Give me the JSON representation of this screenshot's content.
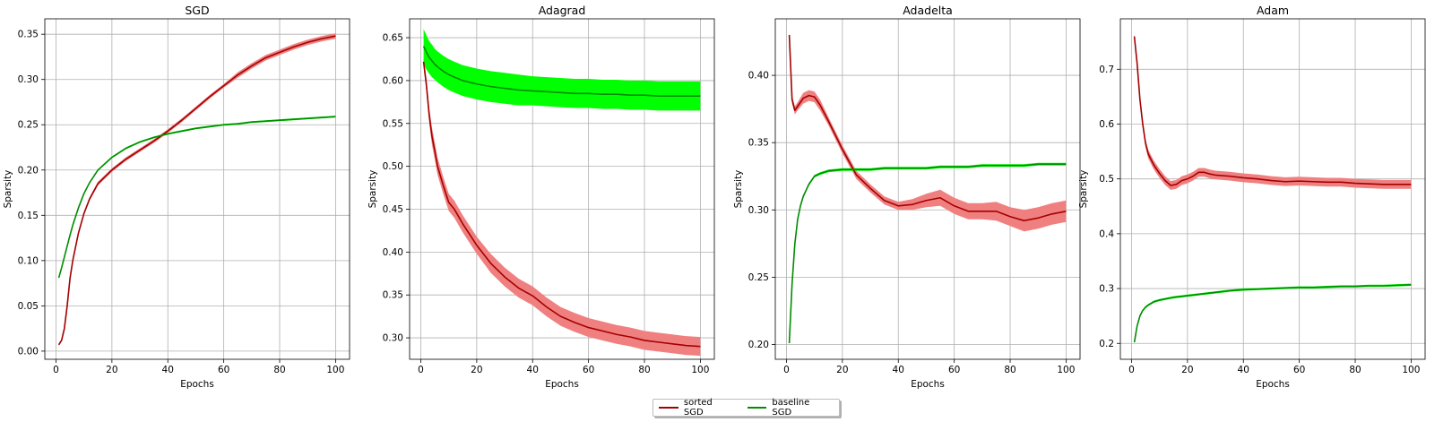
{
  "colors": {
    "sorted": "#a30000",
    "sorted_band": "#f08080",
    "baseline": "#008c00",
    "baseline_band": "#00ff00",
    "grid": "#b0b0b0"
  },
  "legend": {
    "items": [
      "sorted SGD",
      "baseline SGD"
    ],
    "placement": "bottom-center"
  },
  "chart_data": [
    {
      "type": "line",
      "title": "SGD",
      "xlabel": "Epochs",
      "ylabel": "Sparsity",
      "xlim": [
        -4,
        105
      ],
      "ylim": [
        -0.009,
        0.367
      ],
      "xticks": [
        0,
        20,
        40,
        60,
        80,
        100
      ],
      "yticks": [
        0.0,
        0.05,
        0.1,
        0.15,
        0.2,
        0.25,
        0.3,
        0.35
      ],
      "ytick_labels": [
        "0.00",
        "0.05",
        "0.10",
        "0.15",
        "0.20",
        "0.25",
        "0.30",
        "0.35"
      ],
      "grid": true,
      "series": [
        {
          "name": "sorted SGD",
          "x": [
            1,
            2,
            3,
            4,
            5,
            6,
            8,
            10,
            12,
            15,
            20,
            25,
            30,
            35,
            40,
            45,
            50,
            55,
            60,
            65,
            70,
            75,
            80,
            85,
            90,
            95,
            100
          ],
          "y": [
            0.007,
            0.012,
            0.025,
            0.05,
            0.08,
            0.1,
            0.13,
            0.152,
            0.168,
            0.185,
            0.2,
            0.212,
            0.222,
            0.232,
            0.243,
            0.255,
            0.268,
            0.281,
            0.293,
            0.305,
            0.315,
            0.324,
            0.33,
            0.336,
            0.341,
            0.345,
            0.348
          ],
          "band": [
            0.001,
            0.001,
            0.002,
            0.002,
            0.002,
            0.002,
            0.002,
            0.002,
            0.002,
            0.002,
            0.002,
            0.002,
            0.002,
            0.002,
            0.002,
            0.002,
            0.002,
            0.002,
            0.002,
            0.003,
            0.003,
            0.003,
            0.003,
            0.003,
            0.003,
            0.003,
            0.003
          ]
        },
        {
          "name": "baseline SGD",
          "x": [
            1,
            2,
            3,
            4,
            5,
            6,
            8,
            10,
            12,
            15,
            20,
            25,
            30,
            35,
            40,
            45,
            50,
            55,
            60,
            65,
            70,
            75,
            80,
            85,
            90,
            95,
            100
          ],
          "y": [
            0.081,
            0.092,
            0.104,
            0.116,
            0.128,
            0.139,
            0.158,
            0.174,
            0.186,
            0.2,
            0.214,
            0.224,
            0.231,
            0.236,
            0.24,
            0.243,
            0.246,
            0.248,
            0.25,
            0.251,
            0.253,
            0.254,
            0.255,
            0.256,
            0.257,
            0.258,
            0.259
          ],
          "band": [
            0.001,
            0.001,
            0.001,
            0.001,
            0.001,
            0.001,
            0.001,
            0.001,
            0.001,
            0.001,
            0.001,
            0.001,
            0.001,
            0.001,
            0.001,
            0.001,
            0.001,
            0.001,
            0.001,
            0.001,
            0.001,
            0.001,
            0.001,
            0.001,
            0.001,
            0.001,
            0.001
          ]
        }
      ]
    },
    {
      "type": "line",
      "title": "Adagrad",
      "xlabel": "Epochs",
      "ylabel": "Sparsity",
      "xlim": [
        -4,
        105
      ],
      "ylim": [
        0.275,
        0.672
      ],
      "xticks": [
        0,
        20,
        40,
        60,
        80,
        100
      ],
      "yticks": [
        0.3,
        0.35,
        0.4,
        0.45,
        0.5,
        0.55,
        0.6,
        0.65
      ],
      "ytick_labels": [
        "0.30",
        "0.35",
        "0.40",
        "0.45",
        "0.50",
        "0.55",
        "0.60",
        "0.65"
      ],
      "grid": true,
      "series": [
        {
          "name": "sorted SGD",
          "x": [
            1,
            2,
            3,
            4,
            5,
            6,
            8,
            10,
            12,
            15,
            20,
            25,
            30,
            35,
            40,
            45,
            50,
            55,
            60,
            65,
            70,
            75,
            80,
            85,
            90,
            95,
            100
          ],
          "y": [
            0.622,
            0.595,
            0.56,
            0.535,
            0.518,
            0.5,
            0.478,
            0.458,
            0.45,
            0.433,
            0.408,
            0.387,
            0.371,
            0.358,
            0.349,
            0.336,
            0.325,
            0.318,
            0.312,
            0.308,
            0.304,
            0.301,
            0.297,
            0.295,
            0.293,
            0.291,
            0.29
          ],
          "band": [
            0.006,
            0.008,
            0.009,
            0.01,
            0.01,
            0.01,
            0.01,
            0.01,
            0.01,
            0.01,
            0.01,
            0.011,
            0.011,
            0.011,
            0.011,
            0.011,
            0.011,
            0.011,
            0.011,
            0.011,
            0.011,
            0.011,
            0.011,
            0.011,
            0.011,
            0.011,
            0.011
          ]
        },
        {
          "name": "baseline SGD",
          "x": [
            1,
            2,
            3,
            4,
            5,
            6,
            8,
            10,
            12,
            15,
            20,
            25,
            30,
            35,
            40,
            45,
            50,
            55,
            60,
            65,
            70,
            75,
            80,
            85,
            90,
            95,
            100
          ],
          "y": [
            0.64,
            0.633,
            0.627,
            0.623,
            0.619,
            0.616,
            0.611,
            0.607,
            0.604,
            0.6,
            0.596,
            0.593,
            0.591,
            0.589,
            0.588,
            0.587,
            0.586,
            0.585,
            0.585,
            0.584,
            0.584,
            0.583,
            0.583,
            0.582,
            0.582,
            0.582,
            0.582
          ],
          "band": [
            0.02,
            0.02,
            0.019,
            0.019,
            0.018,
            0.018,
            0.018,
            0.018,
            0.018,
            0.018,
            0.018,
            0.018,
            0.018,
            0.018,
            0.017,
            0.017,
            0.017,
            0.017,
            0.017,
            0.017,
            0.017,
            0.017,
            0.017,
            0.017,
            0.017,
            0.017,
            0.017
          ]
        }
      ]
    },
    {
      "type": "line",
      "title": "Adadelta",
      "xlabel": "Epochs",
      "ylabel": "Sparsity",
      "xlim": [
        -4,
        105
      ],
      "ylim": [
        0.189,
        0.442
      ],
      "xticks": [
        0,
        20,
        40,
        60,
        80,
        100
      ],
      "yticks": [
        0.2,
        0.25,
        0.3,
        0.35,
        0.4
      ],
      "ytick_labels": [
        "0.20",
        "0.25",
        "0.30",
        "0.35",
        "0.40"
      ],
      "grid": true,
      "series": [
        {
          "name": "sorted SGD",
          "x": [
            1,
            2,
            3,
            4,
            6,
            8,
            10,
            12,
            15,
            20,
            25,
            30,
            35,
            40,
            45,
            50,
            55,
            60,
            65,
            70,
            75,
            80,
            85,
            90,
            95,
            100
          ],
          "y": [
            0.43,
            0.382,
            0.374,
            0.377,
            0.383,
            0.385,
            0.384,
            0.378,
            0.366,
            0.345,
            0.326,
            0.316,
            0.307,
            0.303,
            0.304,
            0.307,
            0.309,
            0.303,
            0.299,
            0.299,
            0.299,
            0.295,
            0.292,
            0.294,
            0.297,
            0.299
          ],
          "band": [
            0.002,
            0.003,
            0.003,
            0.003,
            0.004,
            0.004,
            0.004,
            0.004,
            0.003,
            0.003,
            0.003,
            0.003,
            0.003,
            0.003,
            0.004,
            0.005,
            0.006,
            0.006,
            0.006,
            0.006,
            0.007,
            0.007,
            0.008,
            0.008,
            0.008,
            0.008
          ]
        },
        {
          "name": "baseline SGD",
          "x": [
            1,
            2,
            3,
            4,
            5,
            6,
            8,
            10,
            12,
            15,
            20,
            25,
            30,
            35,
            40,
            45,
            50,
            55,
            60,
            65,
            70,
            75,
            80,
            85,
            90,
            95,
            100
          ],
          "y": [
            0.201,
            0.245,
            0.275,
            0.293,
            0.303,
            0.31,
            0.319,
            0.325,
            0.327,
            0.329,
            0.33,
            0.33,
            0.33,
            0.331,
            0.331,
            0.331,
            0.331,
            0.332,
            0.332,
            0.332,
            0.333,
            0.333,
            0.333,
            0.333,
            0.334,
            0.334,
            0.334
          ],
          "band": [
            0.001,
            0.001,
            0.001,
            0.001,
            0.001,
            0.001,
            0.001,
            0.001,
            0.001,
            0.001,
            0.001,
            0.001,
            0.001,
            0.001,
            0.001,
            0.001,
            0.001,
            0.001,
            0.001,
            0.001,
            0.001,
            0.001,
            0.001,
            0.001,
            0.001,
            0.001,
            0.001
          ]
        }
      ]
    },
    {
      "type": "line",
      "title": "Adam",
      "xlabel": "Epochs",
      "ylabel": "Sparsity",
      "xlim": [
        -4,
        105
      ],
      "ylim": [
        0.171,
        0.792
      ],
      "xticks": [
        0,
        20,
        40,
        60,
        80,
        100
      ],
      "yticks": [
        0.2,
        0.3,
        0.4,
        0.5,
        0.6,
        0.7
      ],
      "ytick_labels": [
        "0.2",
        "0.3",
        "0.4",
        "0.5",
        "0.6",
        "0.7"
      ],
      "grid": true,
      "series": [
        {
          "name": "sorted SGD",
          "x": [
            1,
            2,
            3,
            4,
            5,
            6,
            8,
            10,
            12,
            14,
            16,
            18,
            20,
            22,
            24,
            26,
            28,
            30,
            35,
            40,
            45,
            50,
            55,
            60,
            65,
            70,
            75,
            80,
            85,
            90,
            95,
            100
          ],
          "y": [
            0.76,
            0.71,
            0.645,
            0.6,
            0.565,
            0.545,
            0.525,
            0.51,
            0.497,
            0.488,
            0.49,
            0.497,
            0.5,
            0.505,
            0.512,
            0.512,
            0.509,
            0.507,
            0.505,
            0.502,
            0.5,
            0.497,
            0.495,
            0.496,
            0.495,
            0.494,
            0.494,
            0.492,
            0.491,
            0.49,
            0.49,
            0.49
          ],
          "band": [
            0.003,
            0.005,
            0.006,
            0.006,
            0.007,
            0.008,
            0.008,
            0.008,
            0.008,
            0.008,
            0.008,
            0.008,
            0.008,
            0.008,
            0.008,
            0.008,
            0.008,
            0.008,
            0.008,
            0.008,
            0.008,
            0.008,
            0.008,
            0.008,
            0.008,
            0.008,
            0.008,
            0.008,
            0.008,
            0.008,
            0.008,
            0.008
          ]
        },
        {
          "name": "baseline SGD",
          "x": [
            1,
            2,
            3,
            4,
            5,
            6,
            8,
            10,
            12,
            15,
            20,
            25,
            30,
            35,
            40,
            45,
            50,
            55,
            60,
            65,
            70,
            75,
            80,
            85,
            90,
            95,
            100
          ],
          "y": [
            0.202,
            0.232,
            0.25,
            0.26,
            0.266,
            0.27,
            0.276,
            0.279,
            0.281,
            0.284,
            0.287,
            0.29,
            0.293,
            0.296,
            0.298,
            0.299,
            0.3,
            0.301,
            0.302,
            0.302,
            0.303,
            0.304,
            0.304,
            0.305,
            0.305,
            0.306,
            0.307
          ],
          "band": [
            0.001,
            0.002,
            0.002,
            0.002,
            0.002,
            0.002,
            0.002,
            0.002,
            0.002,
            0.002,
            0.002,
            0.002,
            0.002,
            0.002,
            0.002,
            0.002,
            0.002,
            0.002,
            0.002,
            0.002,
            0.002,
            0.002,
            0.002,
            0.002,
            0.002,
            0.002,
            0.002
          ]
        }
      ]
    }
  ]
}
